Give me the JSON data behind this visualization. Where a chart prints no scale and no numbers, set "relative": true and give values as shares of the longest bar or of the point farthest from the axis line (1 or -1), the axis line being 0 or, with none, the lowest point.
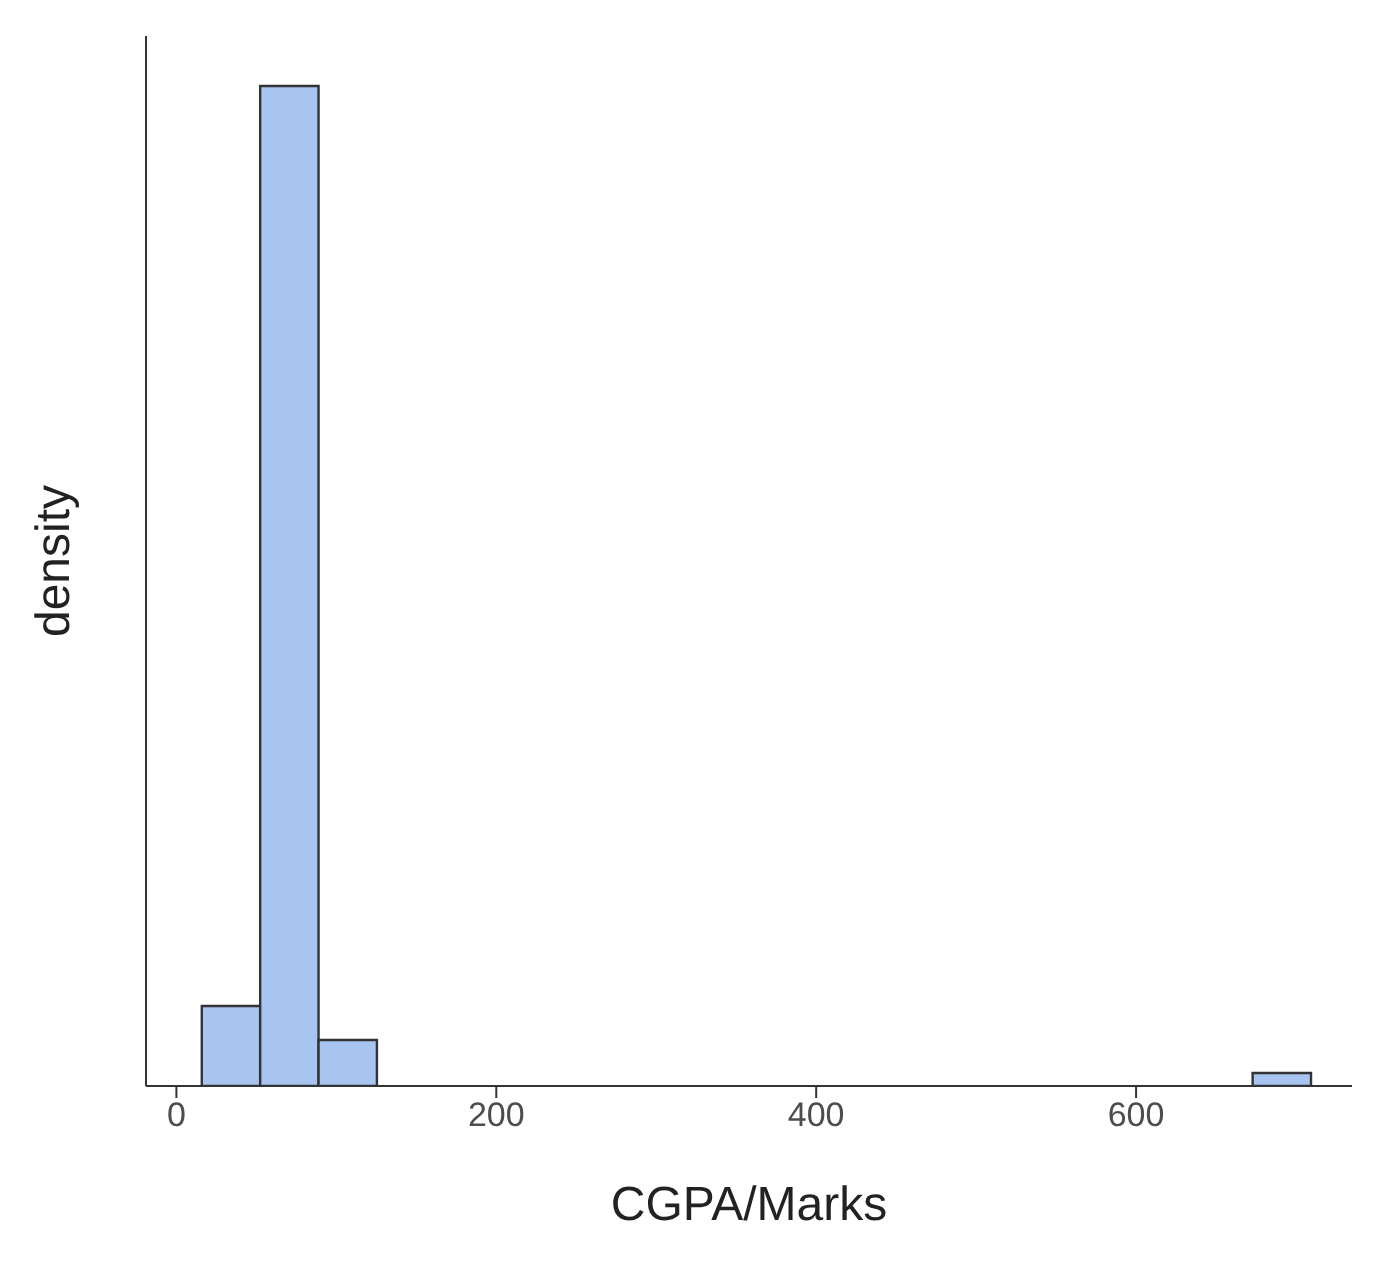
{
  "chart_data": {
    "type": "bar",
    "xlabel": "CGPA/Marks",
    "ylabel": "density",
    "relative": true,
    "x": [
      34.25,
      70.75,
      107.25,
      143.75,
      180.25,
      216.75,
      253.25,
      289.75,
      326.25,
      362.75,
      399.25,
      435.75,
      472.25,
      508.75,
      545.25,
      581.75,
      618.25,
      654.75,
      691.25
    ],
    "values": [
      0.08,
      1,
      0.046,
      0,
      0,
      0,
      0,
      0,
      0,
      0,
      0,
      0,
      0,
      0,
      0,
      0,
      0,
      0,
      0.013
    ],
    "color": "#a8c5f2",
    "xlim": [
      -19,
      735
    ],
    "xticks": [
      0,
      200,
      400,
      600
    ],
    "grid": false
  }
}
